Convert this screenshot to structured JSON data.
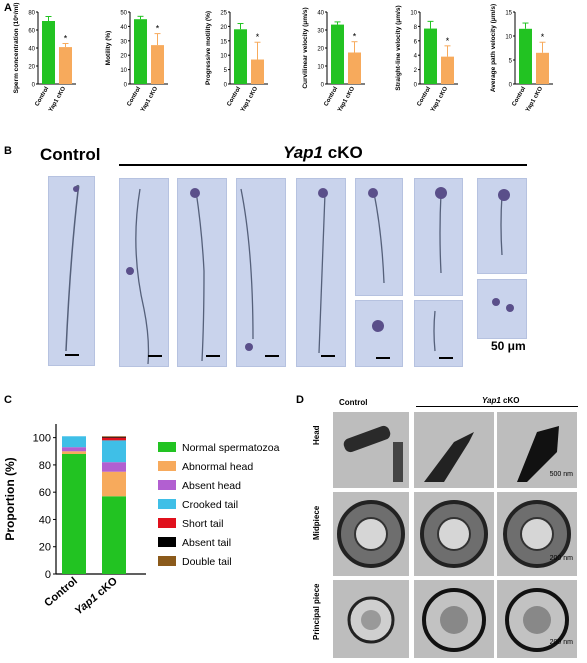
{
  "panels": {
    "a": "A",
    "b": "B",
    "c": "C",
    "d": "D"
  },
  "panel_a": {
    "groups": [
      "Control",
      "Yap1 cKO"
    ],
    "charts": [
      {
        "ylabel": "Sperm concentration (10⁶/ml)",
        "yticks": [
          "0",
          "20",
          "40",
          "60",
          "80"
        ],
        "ymax": 80,
        "values": [
          70,
          41
        ],
        "errors": [
          5,
          4
        ]
      },
      {
        "ylabel": "Motility (%)",
        "yticks": [
          "0",
          "10",
          "20",
          "30",
          "40",
          "50"
        ],
        "ymax": 50,
        "values": [
          45,
          27
        ],
        "errors": [
          2,
          8
        ]
      },
      {
        "ylabel": "Progressive motility (%)",
        "yticks": [
          "0",
          "5",
          "10",
          "15",
          "20",
          "25"
        ],
        "ymax": 25,
        "values": [
          19,
          8.5
        ],
        "errors": [
          2,
          6
        ]
      },
      {
        "ylabel": "Curvilinear velocity (μm/s)",
        "yticks": [
          "0",
          "10",
          "20",
          "30",
          "40"
        ],
        "ymax": 40,
        "values": [
          33,
          17.5
        ],
        "errors": [
          1.5,
          6
        ]
      },
      {
        "ylabel": "Straight-line velocity (μm/s)",
        "yticks": [
          "0",
          "2",
          "4",
          "6",
          "8",
          "10"
        ],
        "ymax": 10,
        "values": [
          7.7,
          3.8
        ],
        "errors": [
          1,
          1.5
        ]
      },
      {
        "ylabel": "Average path velocity (μm/s)",
        "yticks": [
          "0",
          "5",
          "10",
          "15"
        ],
        "ymax": 15,
        "values": [
          11.5,
          6.5
        ],
        "errors": [
          1.2,
          2.2
        ]
      }
    ],
    "star": "*",
    "colors": {
      "control": "#22c322",
      "cko": "#f7aa5c"
    }
  },
  "panel_b": {
    "control_title": "Control",
    "cko_gene": "Yap1",
    "cko_suffix": " cKO",
    "scale_label": "50 μm"
  },
  "panel_c": {
    "ylabel": "Proportion (%)",
    "yticks": [
      "0",
      "20",
      "40",
      "60",
      "80",
      "100"
    ],
    "categories": [
      "Control",
      "Yap1 cKO"
    ],
    "legend": [
      {
        "label": "Normal spermatozoa",
        "color": "#22c322"
      },
      {
        "label": "Abnormal head",
        "color": "#f7aa5c"
      },
      {
        "label": "Absent head",
        "color": "#b25fd1"
      },
      {
        "label": "Crooked tail",
        "color": "#3fbfe7"
      },
      {
        "label": "Short tail",
        "color": "#e0101c"
      },
      {
        "label": "Absent tail",
        "color": "#000000"
      },
      {
        "label": "Double tail",
        "color": "#8b5a1b"
      }
    ]
  },
  "panel_d": {
    "control": "Control",
    "cko_gene": "Yap1",
    "cko_suffix": " cKO",
    "rows": [
      "Head",
      "Midpiece",
      "Principal piece"
    ],
    "scales": [
      "500 nm",
      "200 nm",
      "200 nm"
    ]
  },
  "chart_data": [
    {
      "type": "bar",
      "title": "",
      "categories": [
        "Control",
        "Yap1 cKO"
      ],
      "ylabel": "Sperm concentration (10⁶/ml)",
      "ylim": [
        0,
        80
      ],
      "values": [
        70,
        41
      ]
    },
    {
      "type": "bar",
      "title": "",
      "categories": [
        "Control",
        "Yap1 cKO"
      ],
      "ylabel": "Motility (%)",
      "ylim": [
        0,
        50
      ],
      "values": [
        45,
        27
      ]
    },
    {
      "type": "bar",
      "title": "",
      "categories": [
        "Control",
        "Yap1 cKO"
      ],
      "ylabel": "Progressive motility (%)",
      "ylim": [
        0,
        25
      ],
      "values": [
        19,
        8.5
      ]
    },
    {
      "type": "bar",
      "title": "",
      "categories": [
        "Control",
        "Yap1 cKO"
      ],
      "ylabel": "Curvilinear velocity (μm/s)",
      "ylim": [
        0,
        40
      ],
      "values": [
        33,
        17.5
      ]
    },
    {
      "type": "bar",
      "title": "",
      "categories": [
        "Control",
        "Yap1 cKO"
      ],
      "ylabel": "Straight-line velocity (μm/s)",
      "ylim": [
        0,
        10
      ],
      "values": [
        7.7,
        3.8
      ]
    },
    {
      "type": "bar",
      "title": "",
      "categories": [
        "Control",
        "Yap1 cKO"
      ],
      "ylabel": "Average path velocity (μm/s)",
      "ylim": [
        0,
        15
      ],
      "values": [
        11.5,
        6.5
      ]
    },
    {
      "type": "bar",
      "stacked": true,
      "title": "",
      "categories": [
        "Control",
        "Yap1 cKO"
      ],
      "ylabel": "Proportion (%)",
      "ylim": [
        0,
        110
      ],
      "series": [
        {
          "name": "Normal spermatozoa",
          "values": [
            88,
            57
          ]
        },
        {
          "name": "Abnormal head",
          "values": [
            2,
            18
          ]
        },
        {
          "name": "Absent head",
          "values": [
            3,
            7
          ]
        },
        {
          "name": "Crooked tail",
          "values": [
            8,
            16
          ]
        },
        {
          "name": "Short tail",
          "values": [
            0,
            2
          ]
        },
        {
          "name": "Absent tail",
          "values": [
            0,
            0.5
          ]
        },
        {
          "name": "Double tail",
          "values": [
            0,
            0.5
          ]
        }
      ]
    }
  ]
}
